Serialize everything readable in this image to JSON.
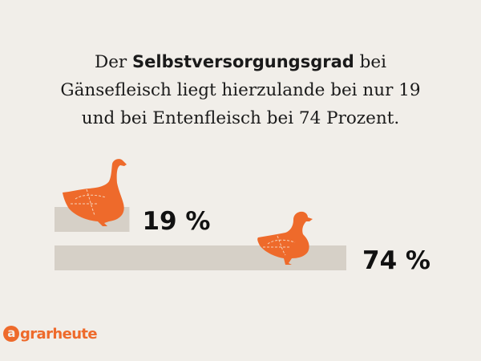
{
  "headline": {
    "line1_pre": "Der ",
    "line1_bold": "Selbstversorgungsgrad",
    "line1_post": " bei",
    "line2": "Gänsefleisch liegt hierzulande bei nur 19",
    "line3": "und bei Entenfleisch bei 74 Prozent."
  },
  "chart_data": {
    "type": "bar",
    "orientation": "horizontal",
    "categories": [
      "Gänsefleisch",
      "Entenfleisch"
    ],
    "values": [
      19,
      74
    ],
    "value_labels": [
      "19 %",
      "74 %"
    ],
    "unit": "%",
    "xlim": [
      0,
      74
    ],
    "grid": false,
    "icons": [
      "goose-icon",
      "duck-icon"
    ]
  },
  "colors": {
    "background": "#f1eee9",
    "bar": "#d6d0c7",
    "accent": "#ee6a2b",
    "text": "#1a1a1a"
  },
  "brand": {
    "mark": "a",
    "name": "grarheute"
  }
}
